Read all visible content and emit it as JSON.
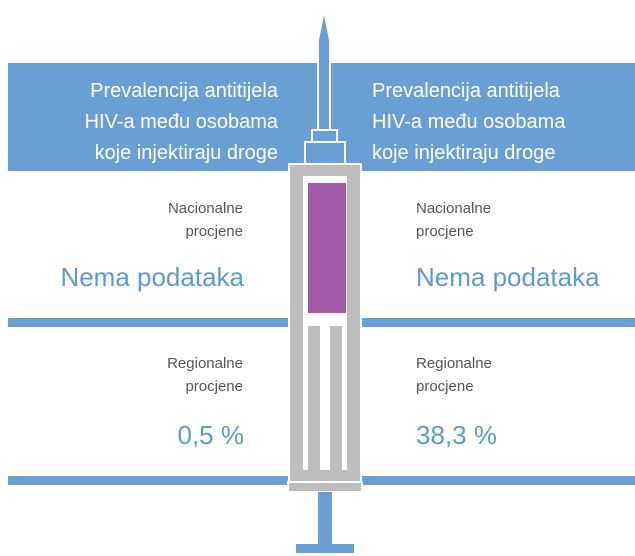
{
  "panels": [
    {
      "header": [
        "Prevalencija antitijela",
        "HIV-a među osobama",
        "koje injektiraju droge"
      ],
      "national_label": [
        "Nacionalne",
        "procjene"
      ],
      "national_value": "Nema podataka",
      "regional_label": [
        "Regionalne",
        "procjene"
      ],
      "regional_value": "0,5 %"
    },
    {
      "header": [
        "Prevalencija antitijela",
        "HIV-a među osobama",
        "koje injektiraju droge"
      ],
      "national_label": [
        "Nacionalne",
        "procjene"
      ],
      "national_value": "Nema podataka",
      "regional_label": [
        "Regionalne",
        "procjene"
      ],
      "regional_value": "38,3 %"
    }
  ]
}
